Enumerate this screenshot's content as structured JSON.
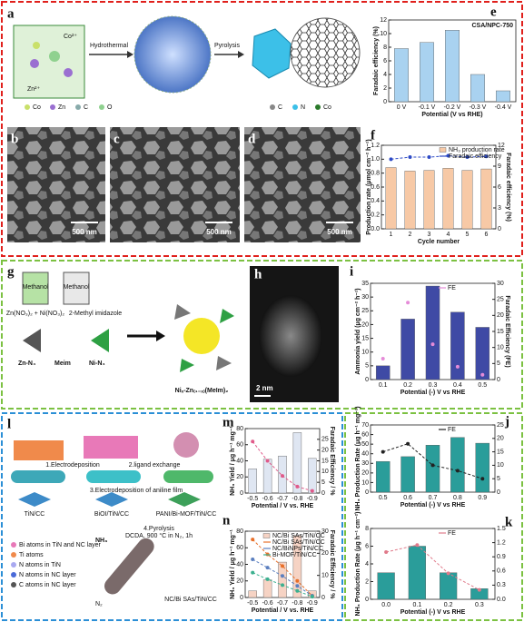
{
  "panel_labels": [
    "a",
    "e",
    "b",
    "c",
    "d",
    "f",
    "g",
    "h",
    "i",
    "l",
    "m",
    "n",
    "j",
    "k"
  ],
  "panel_a": {
    "ions": [
      "Co²⁺",
      "Zn²⁺"
    ],
    "steps": [
      "Hydrothermal",
      "Pyrolysis"
    ],
    "legend_1": [
      "Co",
      "Zn",
      "C",
      "O"
    ],
    "legend_2": [
      "C",
      "N",
      "Co"
    ]
  },
  "sem_scale": [
    "500 nm",
    "500 nm",
    "500 nm"
  ],
  "panel_g": {
    "beakers": [
      "Methanol",
      "Methanol"
    ],
    "reagents": [
      "Zn(NO₃)₂ + Ni(NO₃)₂",
      "2-Methyl imidazole"
    ],
    "units": [
      "Zn-N₄",
      "Meim",
      "Ni-N₄"
    ],
    "product": "Niₓ-Zn₍₁₋ₓ₎(MeIm)₂"
  },
  "panel_h": {
    "scale": "2 nm"
  },
  "panel_l": {
    "steps": [
      "1.Electrodeposition",
      "2.ligand exchange",
      "3.Electrodeposition of aniline film",
      "4.Pyrolysis",
      "DCDA, 900 °C in N₂, 1h"
    ],
    "materials": [
      "TiN/CC",
      "BiOI/TiN/CC",
      "PANI/Bi-MOF/TiN/CC",
      "NC/Bi SAs/TiN/CC"
    ],
    "gases": [
      "NH₃",
      "N₂"
    ],
    "legend": [
      "Bi atoms in TiN and NC layer",
      "Ti atoms",
      "N atoms in TiN",
      "N atoms in NC layer",
      "C atoms in NC layer"
    ]
  },
  "chart_data": [
    {
      "type": "bar",
      "title": "CSA/NPC-750",
      "categories": [
        "0 V",
        "-0.1 V",
        "-0.2 V",
        "-0.3 V",
        "-0.4 V"
      ],
      "values": [
        7.8,
        8.7,
        10.5,
        4.0,
        1.6
      ],
      "color": "#a9d2f0",
      "ylim": [
        0,
        12
      ],
      "yticks": [
        0,
        2,
        4,
        6,
        8,
        10,
        12
      ],
      "xlabel": "Potential (V vs RHE)",
      "ylabel": "Faradaic efficiency (%)"
    },
    {
      "type": "combo",
      "categories": [
        "1",
        "2",
        "3",
        "4",
        "5",
        "6"
      ],
      "series": [
        {
          "name": "NH₃ production rate",
          "type": "bar",
          "color": "#f7c9a6",
          "values": [
            0.88,
            0.83,
            0.84,
            0.87,
            0.84,
            0.86
          ]
        },
        {
          "name": "Faradaic efficiency",
          "type": "line",
          "axis": "y2",
          "color": "#2e4bc6",
          "values": [
            10.0,
            10.3,
            10.3,
            10.5,
            10.3,
            10.4
          ]
        }
      ],
      "ylim": [
        0,
        1.2
      ],
      "yticks": [
        {
          "value": 0,
          "label": "0.0"
        },
        {
          "value": 0.2,
          "label": "0.2"
        },
        {
          "value": 0.4,
          "label": "0.4"
        },
        {
          "value": 0.6,
          "label": "0.6"
        },
        {
          "value": 0.8,
          "label": "0.8"
        },
        {
          "value": 1,
          "label": "1.0"
        },
        {
          "value": 1.2,
          "label": "1.2"
        }
      ],
      "y2lim": [
        0,
        12
      ],
      "y2ticks": [
        0,
        3,
        6,
        9,
        12
      ],
      "xlabel": "Cycle number",
      "ylabel": "Production rate (μmol cm⁻² h⁻¹)",
      "y2label": "Faradaic efficiency (%)",
      "legend": "upper right"
    },
    {
      "type": "combo",
      "categories": [
        "0.1",
        "0.2",
        "0.3",
        "0.4",
        "0.5"
      ],
      "series": [
        {
          "type": "bar",
          "color": "#3f4aa5",
          "values": [
            5,
            22,
            34,
            24.5,
            19
          ]
        },
        {
          "name": "FE",
          "type": "scatter",
          "axis": "y2",
          "color": "#e58bd8",
          "values": [
            6.5,
            24,
            11,
            4,
            1.5
          ]
        }
      ],
      "ylim": [
        0,
        35
      ],
      "yticks": [
        0,
        5,
        10,
        15,
        20,
        25,
        30,
        35
      ],
      "y2lim": [
        0,
        30
      ],
      "y2ticks": [
        0,
        5,
        10,
        15,
        20,
        25,
        30
      ],
      "xlabel": "Potential (-) V vs RHE",
      "ylabel": "Ammonia yield (μg cm⁻² h⁻¹)",
      "y2label": "Faradaic Efficiency (FE)",
      "legend": "upper right"
    },
    {
      "type": "combo",
      "categories": [
        "-0.5",
        "-0.6",
        "-0.7",
        "-0.8",
        "-0.9"
      ],
      "series": [
        {
          "type": "bar",
          "color": "#dfe6f2",
          "values": [
            30,
            42,
            46,
            75,
            43
          ]
        },
        {
          "type": "line",
          "axis": "y2",
          "color": "#e05a8a",
          "values": [
            24,
            15,
            8,
            3,
            1
          ]
        }
      ],
      "ylim": [
        0,
        80
      ],
      "yticks": [
        0,
        20,
        40,
        60,
        80
      ],
      "y2lim": [
        0,
        30
      ],
      "y2ticks": [
        0,
        5,
        10,
        15,
        20,
        25
      ],
      "xlabel": "Potential / V vs. RHE",
      "ylabel": "NH₃ Yield / μg h⁻¹ mg⁻¹",
      "y2label": "Faradaic Efficiency / %"
    },
    {
      "type": "combo",
      "categories": [
        "-0.5",
        "-0.6",
        "-0.7",
        "-0.8",
        "-0.9"
      ],
      "series": [
        {
          "name": "NC/Bi SAs/TiN/CC",
          "type": "bar",
          "axis": "y2",
          "color": "#f6d3c4",
          "values": [
            3,
            8,
            16,
            28,
            3
          ]
        },
        {
          "name": "NC/Bi SAs/TiN/CC",
          "type": "line",
          "color": "#e8702a",
          "values": [
            70,
            52,
            38,
            20,
            2
          ]
        },
        {
          "name": "NC/BiNPs/TiN/CC",
          "type": "line",
          "color": "#5b7fbf",
          "values": [
            46,
            36,
            26,
            14,
            2
          ]
        },
        {
          "name": "Bi-MOF/TiN/CC",
          "type": "line",
          "color": "#3bb08f",
          "values": [
            30,
            22,
            15,
            8,
            1
          ]
        }
      ],
      "ylim": [
        0,
        80
      ],
      "yticks": [
        0,
        20,
        40,
        60,
        80
      ],
      "y2lim": [
        0,
        30
      ],
      "y2ticks": [
        0,
        10,
        20,
        30
      ],
      "xlabel": "Potential / V vs. RHE",
      "ylabel": "NH₃ Yield / μg h⁻¹ mg⁻¹",
      "y2label": "Faradaic Efficiency / %",
      "legend": "upper right"
    },
    {
      "type": "combo",
      "categories": [
        "0.5",
        "0.6",
        "0.7",
        "0.8",
        "0.9"
      ],
      "series": [
        {
          "type": "bar",
          "color": "#2a9d9a",
          "values": [
            32,
            37,
            49,
            57,
            51
          ]
        },
        {
          "name": "FE",
          "type": "line",
          "axis": "y2",
          "color": "#222222",
          "values": [
            15,
            18,
            10,
            8,
            5
          ]
        }
      ],
      "ylim": [
        0,
        70
      ],
      "yticks": [
        0,
        10,
        20,
        30,
        40,
        50,
        60,
        70
      ],
      "y2lim": [
        0,
        25
      ],
      "y2ticks": [
        0,
        5,
        10,
        15,
        20,
        25
      ],
      "xlabel": "Potential (-) V vs RHE",
      "ylabel": "NH₃ Production Rate (μg h⁻¹ mg⁻¹)",
      "legend": "upper right"
    },
    {
      "type": "combo",
      "categories": [
        "0.0",
        "0.1",
        "0.2",
        "0.3"
      ],
      "series": [
        {
          "type": "bar",
          "color": "#2a9d9a",
          "values": [
            3,
            6,
            3,
            1.2
          ]
        },
        {
          "name": "FE",
          "type": "line",
          "axis": "y2",
          "color": "#e07a8a",
          "values": [
            1.0,
            1.15,
            0.55,
            0.2
          ]
        }
      ],
      "ylim": [
        0,
        8
      ],
      "yticks": [
        0,
        2,
        4,
        6,
        8
      ],
      "y2lim": [
        0,
        1.5
      ],
      "y2ticks": [
        {
          "value": 0,
          "label": "0.0"
        },
        {
          "value": 0.3,
          "label": "0.3"
        },
        {
          "value": 0.6,
          "label": "0.6"
        },
        {
          "value": 0.9,
          "label": "0.9"
        },
        {
          "value": 1.2,
          "label": "1.2"
        },
        {
          "value": 1.5,
          "label": "1.5"
        }
      ],
      "xlabel": "Potential (-) V vs RHE",
      "ylabel": "NH₃ Production Rate (μg h⁻¹ cm⁻²)",
      "legend": "upper right"
    }
  ]
}
